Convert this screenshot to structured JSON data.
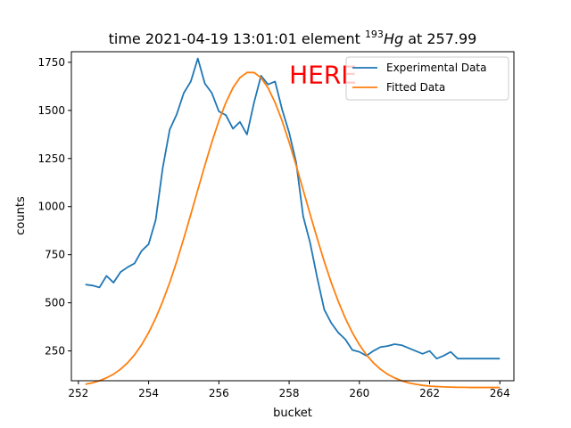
{
  "chart_data": {
    "type": "line",
    "title_prefix": "time 2021-04-19 13:01:01 element ",
    "title_isotope_mass": "193",
    "title_element": "Hg",
    "title_suffix": " at 257.99",
    "xlabel": "bucket",
    "ylabel": "counts",
    "xlim": [
      251.8,
      264.4
    ],
    "ylim": [
      95,
      1805
    ],
    "xticks": [
      252,
      254,
      256,
      258,
      260,
      262,
      264
    ],
    "yticks": [
      250,
      500,
      750,
      1000,
      1250,
      1500,
      1750
    ],
    "grid": false,
    "legend_position": "top-right",
    "annotation": {
      "text": "HERE",
      "x": 258.0,
      "y": 1640,
      "color": "#ff0000"
    },
    "series": [
      {
        "name": "Experimental Data",
        "color": "#1f77b4",
        "x": [
          252.2,
          252.4,
          252.6,
          252.8,
          253.0,
          253.2,
          253.4,
          253.6,
          253.8,
          254.0,
          254.2,
          254.4,
          254.6,
          254.8,
          255.0,
          255.2,
          255.4,
          255.6,
          255.8,
          256.0,
          256.2,
          256.4,
          256.6,
          256.8,
          257.0,
          257.2,
          257.4,
          257.6,
          257.8,
          258.0,
          258.2,
          258.4,
          258.6,
          258.8,
          259.0,
          259.2,
          259.4,
          259.6,
          259.8,
          260.0,
          260.2,
          260.4,
          260.6,
          260.8,
          261.0,
          261.2,
          261.4,
          261.6,
          261.8,
          262.0,
          262.2,
          262.4,
          262.6,
          262.8,
          263.0,
          263.2,
          263.4,
          263.6,
          263.8,
          264.0
        ],
        "y": [
          595,
          590,
          580,
          640,
          605,
          660,
          685,
          705,
          770,
          805,
          930,
          1200,
          1400,
          1480,
          1590,
          1650,
          1770,
          1640,
          1590,
          1495,
          1475,
          1405,
          1440,
          1375,
          1540,
          1680,
          1635,
          1650,
          1505,
          1385,
          1230,
          950,
          810,
          630,
          465,
          395,
          345,
          310,
          255,
          245,
          225,
          250,
          270,
          275,
          285,
          280,
          265,
          250,
          235,
          250,
          210,
          225,
          245,
          210,
          210,
          210,
          210,
          210,
          210,
          210
        ]
      },
      {
        "name": "Fitted Data",
        "color": "#ff7f0e",
        "x": [],
        "y": []
      }
    ]
  }
}
